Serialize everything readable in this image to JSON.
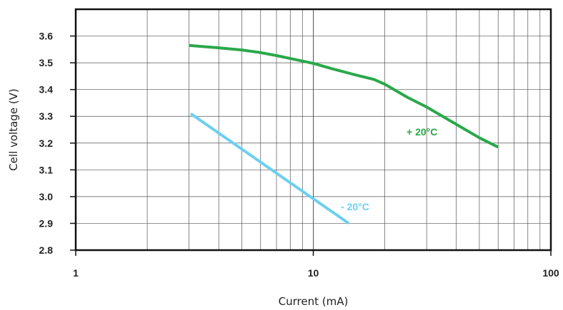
{
  "chart_data": {
    "type": "line",
    "xlabel": "Current (mA)",
    "ylabel": "Cell voltage (V)",
    "x_scale": "log",
    "xlim": [
      1,
      100
    ],
    "ylim": [
      2.8,
      3.7
    ],
    "x_ticks": [
      "1",
      "10",
      "100"
    ],
    "x_tick_values": [
      1,
      10,
      100
    ],
    "y_ticks": [
      "2.8",
      "2.9",
      "3.0",
      "3.1",
      "3.2",
      "3.3",
      "3.4",
      "3.5",
      "3.6"
    ],
    "y_tick_values": [
      2.8,
      2.9,
      3.0,
      3.1,
      3.2,
      3.3,
      3.4,
      3.5,
      3.6
    ],
    "grid": true,
    "series": [
      {
        "name": "+ 20°C",
        "color": "#2aa84a",
        "x": [
          3,
          4,
          5,
          6,
          7,
          8,
          10,
          12,
          15,
          18,
          20,
          25,
          30,
          40,
          50,
          60
        ],
        "y": [
          3.565,
          3.556,
          3.548,
          3.538,
          3.527,
          3.516,
          3.498,
          3.478,
          3.455,
          3.438,
          3.42,
          3.37,
          3.335,
          3.27,
          3.22,
          3.185
        ]
      },
      {
        "name": "- 20°C",
        "color": "#6ccff2",
        "x": [
          3.05,
          14.1
        ],
        "y": [
          3.31,
          2.9
        ]
      }
    ]
  }
}
